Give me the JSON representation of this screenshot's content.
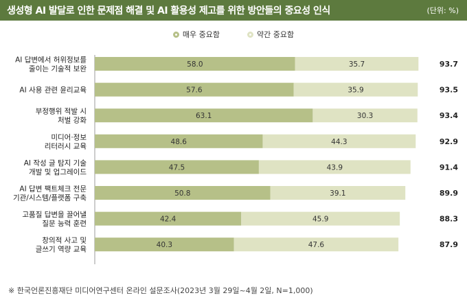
{
  "header": {
    "title": "생성형 AI 발달로 인한 문제점 해결 및 AI 활용성 제고를 위한 방안들의 중요성 인식",
    "unit": "(단위: %)"
  },
  "footnote": "※ 한국언론진흥재단 미디어연구센터 온라인 설문조사(2023년 3월 29일~4월 2일, N=1,000)",
  "colors": {
    "header_bg": "#5d7a3e",
    "very_important": "#b6c088",
    "somewhat_important": "#dfe3c3"
  },
  "chart_data": {
    "type": "bar",
    "orientation": "horizontal",
    "stacked": true,
    "categories": [
      [
        "AI 답변에서 허위정보를",
        "줄이는 기술적 보완"
      ],
      [
        "AI 사용 관련 윤리교육"
      ],
      [
        "부정행위 적발 시",
        "처벌 강화"
      ],
      [
        "미디어·정보",
        "리터러시 교육"
      ],
      [
        "AI 작성 글 탐지 기술",
        "개발 및 업그레이드"
      ],
      [
        "AI 답변 팩트체크 전문",
        "기관/시스템/플랫폼 구축"
      ],
      [
        "고품질 답변을 끌어낼",
        "질문 능력 훈련"
      ],
      [
        "창의적 사고 및",
        "글쓰기 역량 교육"
      ]
    ],
    "series": [
      {
        "name": "매우 중요함",
        "values": [
          58.0,
          57.6,
          63.1,
          48.6,
          47.5,
          50.8,
          42.4,
          40.3
        ]
      },
      {
        "name": "약간 중요함",
        "values": [
          35.7,
          35.9,
          30.3,
          44.3,
          43.9,
          39.1,
          45.9,
          47.6
        ]
      }
    ],
    "totals": [
      93.7,
      93.5,
      93.4,
      92.9,
      91.4,
      89.9,
      88.3,
      87.9
    ],
    "xlim": [
      0,
      100
    ],
    "legend_position": "top-center",
    "grid": false
  }
}
